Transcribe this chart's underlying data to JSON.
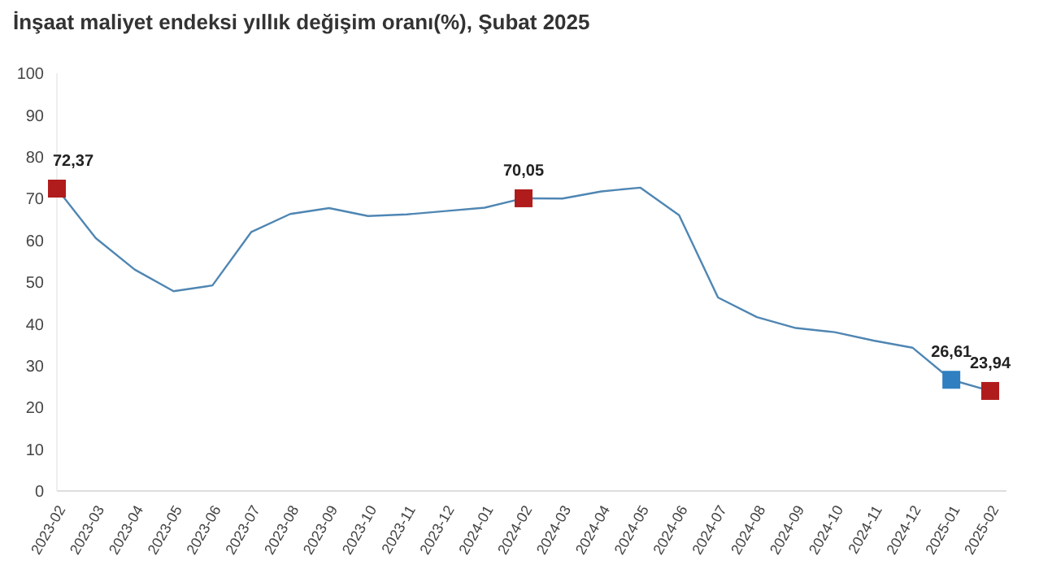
{
  "chart_data": {
    "type": "line",
    "title": "İnşaat maliyet endeksi yıllık değişim oranı(%), Şubat 2025",
    "categories": [
      "2023-02",
      "2023-03",
      "2023-04",
      "2023-05",
      "2023-06",
      "2023-07",
      "2023-08",
      "2023-09",
      "2023-10",
      "2023-11",
      "2023-12",
      "2024-01",
      "2024-02",
      "2024-03",
      "2024-04",
      "2024-05",
      "2024-06",
      "2024-07",
      "2024-08",
      "2024-09",
      "2024-10",
      "2024-11",
      "2024-12",
      "2025-01",
      "2025-02"
    ],
    "series": [
      {
        "color": "#4f86b3",
        "values": [
          72.37,
          60.5,
          53,
          47.8,
          49.2,
          62,
          66.3,
          67.7,
          65.8,
          66.2,
          67,
          67.8,
          70.05,
          70,
          71.7,
          72.6,
          66,
          46.3,
          41.6,
          39,
          38,
          36,
          34.3,
          26.61,
          23.94
        ],
        "colors": [
          "#b01c1c",
          null,
          null,
          null,
          null,
          null,
          null,
          null,
          null,
          null,
          null,
          null,
          "#b01c1c",
          null,
          null,
          null,
          null,
          null,
          null,
          null,
          null,
          null,
          null,
          "#2f7fc1",
          "#b01c1c"
        ],
        "value_labels": [
          "72,37",
          null,
          null,
          null,
          null,
          null,
          null,
          null,
          null,
          null,
          null,
          null,
          "70,05",
          null,
          null,
          null,
          null,
          null,
          null,
          null,
          null,
          null,
          null,
          "26,61",
          "23,94"
        ]
      }
    ],
    "ylim": [
      0,
      100
    ],
    "yticks": [
      0,
      10,
      20,
      30,
      40,
      50,
      60,
      70,
      80,
      90,
      100
    ],
    "grid": false,
    "line_style": "solid"
  }
}
